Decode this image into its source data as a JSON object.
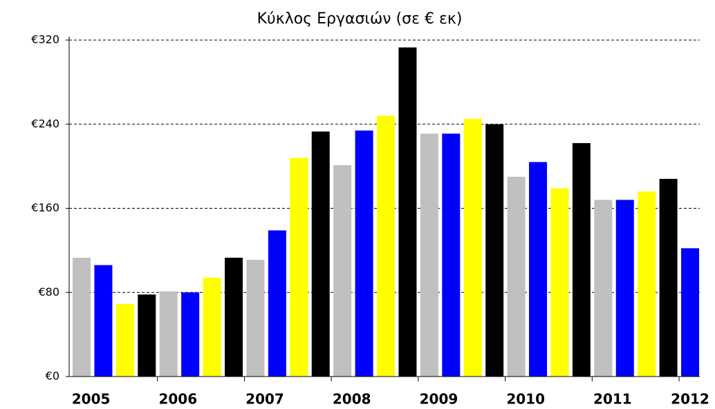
{
  "chart_data": {
    "type": "bar",
    "title": "Κύκλος Εργασιών (σε € εκ)",
    "categories": [
      "2005",
      null,
      null,
      null,
      "2006",
      null,
      null,
      null,
      "2007",
      null,
      null,
      null,
      "2008",
      null,
      null,
      null,
      "2009",
      null,
      null,
      null,
      "2010",
      null,
      null,
      null,
      "2011",
      null,
      null,
      null,
      "2012"
    ],
    "values": [
      113,
      106,
      69,
      78,
      81,
      80,
      94,
      113,
      111,
      139,
      208,
      233,
      201,
      234,
      248,
      313,
      231,
      231,
      245,
      240,
      190,
      204,
      179,
      222,
      168,
      168,
      176,
      188,
      122
    ],
    "colors": [
      "#c0c0c0",
      "#0000ff",
      "#ffff00",
      "#000000",
      "#c0c0c0",
      "#0000ff",
      "#ffff00",
      "#000000",
      "#c0c0c0",
      "#0000ff",
      "#ffff00",
      "#000000",
      "#c0c0c0",
      "#0000ff",
      "#ffff00",
      "#000000",
      "#c0c0c0",
      "#0000ff",
      "#ffff00",
      "#000000",
      "#c0c0c0",
      "#0000ff",
      "#ffff00",
      "#000000",
      "#c0c0c0",
      "#0000ff",
      "#ffff00",
      "#000000",
      "#0000ff"
    ],
    "ylim": [
      0,
      320
    ],
    "yticks": [
      {
        "value": 0,
        "label": "€0"
      },
      {
        "value": 80,
        "label": "€80"
      },
      {
        "value": 160,
        "label": "€160"
      },
      {
        "value": 240,
        "label": "€240"
      },
      {
        "value": 320,
        "label": "€320"
      }
    ],
    "grid": true
  }
}
